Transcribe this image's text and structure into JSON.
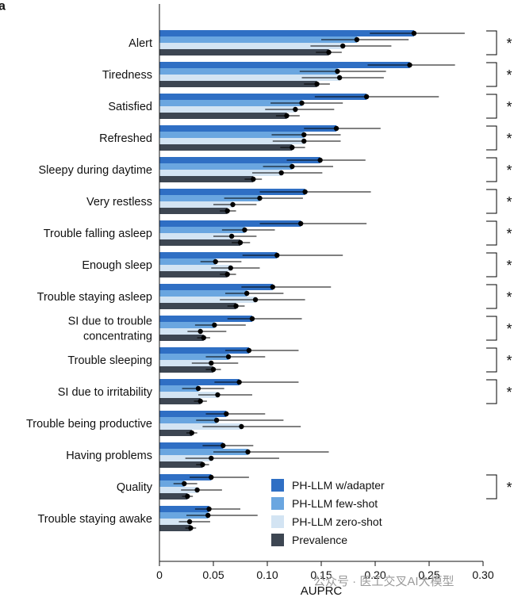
{
  "panel_label": "a",
  "watermark": "公众号 · 医工交叉AI大模型",
  "chart_data": {
    "type": "bar",
    "orientation": "horizontal",
    "xlabel": "AUPRC",
    "xlim": [
      0,
      0.31
    ],
    "xticks": [
      0,
      0.05,
      0.1,
      0.15,
      0.2,
      0.25,
      0.3
    ],
    "xtick_labels": [
      "0",
      "0.05",
      "0.10",
      "0.15",
      "0.20",
      "0.25",
      "0.30"
    ],
    "legend_position": "bottom-right",
    "significance_marker": "*",
    "categories": [
      "Alert",
      "Tiredness",
      "Satisfied",
      "Refreshed",
      "Sleepy during daytime",
      "Very restless",
      "Trouble falling asleep",
      "Enough sleep",
      "Trouble staying asleep",
      "SI due to trouble concentrating",
      "Trouble sleeping",
      "SI due to irritability",
      "Trouble being productive",
      "Having problems",
      "Quality",
      "Trouble staying awake"
    ],
    "category_lines": [
      [
        "Alert"
      ],
      [
        "Tiredness"
      ],
      [
        "Satisfied"
      ],
      [
        "Refreshed"
      ],
      [
        "Sleepy during daytime"
      ],
      [
        "Very restless"
      ],
      [
        "Trouble falling asleep"
      ],
      [
        "Enough sleep"
      ],
      [
        "Trouble staying asleep"
      ],
      [
        "SI due to trouble",
        "concentrating"
      ],
      [
        "Trouble sleeping"
      ],
      [
        "SI due to irritability"
      ],
      [
        "Trouble being productive"
      ],
      [
        "Having problems"
      ],
      [
        "Quality"
      ],
      [
        "Trouble staying awake"
      ]
    ],
    "significant": [
      true,
      true,
      true,
      true,
      true,
      true,
      true,
      true,
      true,
      true,
      true,
      true,
      false,
      false,
      true,
      false
    ],
    "series": [
      {
        "name": "PH-LLM w/adapter",
        "color": "#2f6fc4",
        "values": [
          0.236,
          0.232,
          0.192,
          0.164,
          0.149,
          0.135,
          0.131,
          0.109,
          0.105,
          0.086,
          0.083,
          0.074,
          0.062,
          0.059,
          0.048,
          0.046
        ],
        "ci_low": [
          0.195,
          0.193,
          0.144,
          0.134,
          0.118,
          0.093,
          0.093,
          0.077,
          0.076,
          0.063,
          0.061,
          0.051,
          0.043,
          0.04,
          0.028,
          0.033
        ],
        "ci_high": [
          0.283,
          0.274,
          0.259,
          0.205,
          0.191,
          0.196,
          0.192,
          0.17,
          0.159,
          0.132,
          0.129,
          0.129,
          0.098,
          0.087,
          0.083,
          0.075
        ]
      },
      {
        "name": "PH-LLM few-shot",
        "color": "#6aa6e0",
        "values": [
          0.183,
          0.165,
          0.132,
          0.134,
          0.123,
          0.093,
          0.079,
          0.052,
          0.081,
          0.051,
          0.064,
          0.036,
          0.053,
          0.082,
          0.023,
          0.045
        ],
        "ci_low": [
          0.15,
          0.13,
          0.103,
          0.104,
          0.096,
          0.06,
          0.058,
          0.038,
          0.061,
          0.033,
          0.043,
          0.021,
          0.034,
          0.05,
          0.013,
          0.025
        ],
        "ci_high": [
          0.231,
          0.21,
          0.17,
          0.168,
          0.161,
          0.133,
          0.107,
          0.076,
          0.115,
          0.08,
          0.098,
          0.06,
          0.115,
          0.157,
          0.035,
          0.091
        ]
      },
      {
        "name": "PH-LLM zero-shot",
        "color": "#d3e4f3",
        "values": [
          0.17,
          0.167,
          0.126,
          0.134,
          0.113,
          0.068,
          0.067,
          0.066,
          0.089,
          0.038,
          0.048,
          0.054,
          0.076,
          0.048,
          0.035,
          0.028
        ],
        "ci_low": [
          0.14,
          0.132,
          0.098,
          0.105,
          0.086,
          0.05,
          0.05,
          0.048,
          0.056,
          0.026,
          0.03,
          0.036,
          0.04,
          0.024,
          0.02,
          0.018
        ],
        "ci_high": [
          0.215,
          0.208,
          0.162,
          0.168,
          0.151,
          0.09,
          0.09,
          0.093,
          0.135,
          0.062,
          0.073,
          0.086,
          0.131,
          0.111,
          0.058,
          0.047
        ]
      },
      {
        "name": "Prevalence",
        "color": "#3d4652",
        "values": [
          0.157,
          0.146,
          0.118,
          0.123,
          0.087,
          0.063,
          0.075,
          0.063,
          0.071,
          0.041,
          0.05,
          0.038,
          0.03,
          0.04,
          0.026,
          0.029
        ],
        "ci_low": [
          0.145,
          0.134,
          0.108,
          0.112,
          0.079,
          0.056,
          0.067,
          0.056,
          0.063,
          0.035,
          0.043,
          0.032,
          0.025,
          0.034,
          0.021,
          0.024
        ],
        "ci_high": [
          0.169,
          0.158,
          0.13,
          0.135,
          0.095,
          0.071,
          0.084,
          0.071,
          0.079,
          0.047,
          0.057,
          0.044,
          0.035,
          0.046,
          0.031,
          0.034
        ]
      }
    ]
  }
}
